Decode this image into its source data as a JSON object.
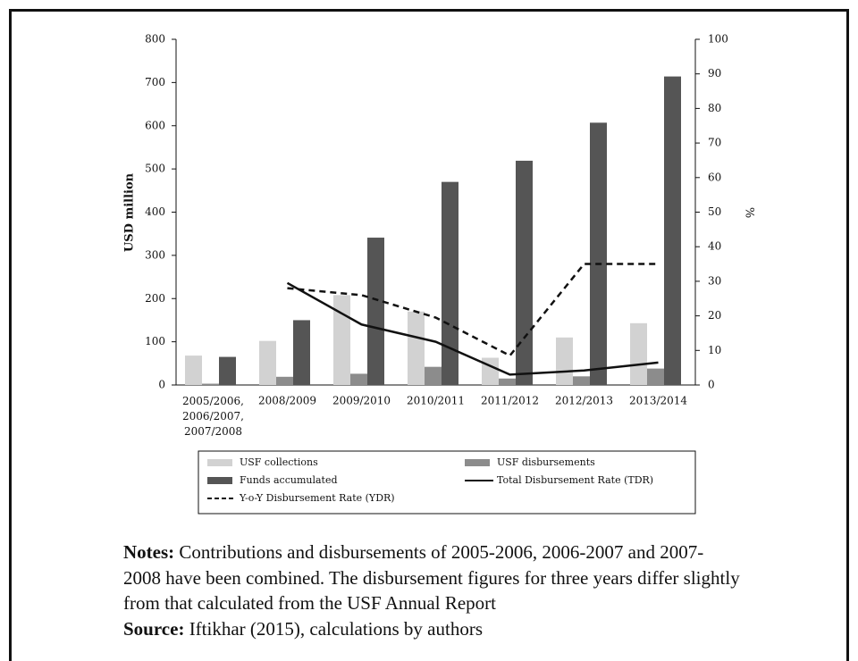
{
  "chart_data": {
    "type": "bar-line",
    "categories": [
      "2005/2006, 2006/2007, 2007/2008",
      "2008/2009",
      "2009/2010",
      "2010/2011",
      "2011/2012",
      "2012/2013",
      "2013/2014"
    ],
    "ylabel": "USD million",
    "y2label": "%",
    "ylim": [
      0,
      800
    ],
    "yticks": [
      0,
      100,
      200,
      300,
      400,
      500,
      600,
      700,
      800
    ],
    "y2lim": [
      0,
      100
    ],
    "y2ticks": [
      0,
      10,
      20,
      30,
      40,
      50,
      60,
      70,
      80,
      90,
      100
    ],
    "series": [
      {
        "name": "USF collections",
        "kind": "bar",
        "color": "#d2d2d2",
        "values": [
          68,
          102,
          208,
          170,
          63,
          110,
          143
        ]
      },
      {
        "name": "USF disbursements",
        "kind": "bar",
        "color": "#8c8c8c",
        "values": [
          3,
          19,
          26,
          42,
          15,
          20,
          38
        ]
      },
      {
        "name": "Funds accumulated",
        "kind": "bar",
        "color": "#555555",
        "values": [
          65,
          150,
          341,
          470,
          519,
          607,
          714
        ]
      },
      {
        "name": "Total Disbursement Rate (TDR)",
        "kind": "line",
        "axis": "y2",
        "color": "#111111",
        "dash": false,
        "values": [
          null,
          29.5,
          17.5,
          12.5,
          3,
          4.2,
          6.5
        ]
      },
      {
        "name": "Y-o-Y Disbursement Rate (YDR)",
        "kind": "line",
        "axis": "y2",
        "color": "#111111",
        "dash": true,
        "values": [
          null,
          28,
          26,
          19.5,
          8.5,
          35,
          35
        ]
      }
    ]
  },
  "notes": {
    "label": "Notes:",
    "text": "Contributions and disbursements of 2005-2006, 2006-2007 and 2007-2008 have been combined. The disbursement figures for three years differ slightly from that calculated from the USF Annual Report"
  },
  "source": {
    "label": "Source:",
    "text": "Iftikhar (2015), calculations by authors"
  }
}
